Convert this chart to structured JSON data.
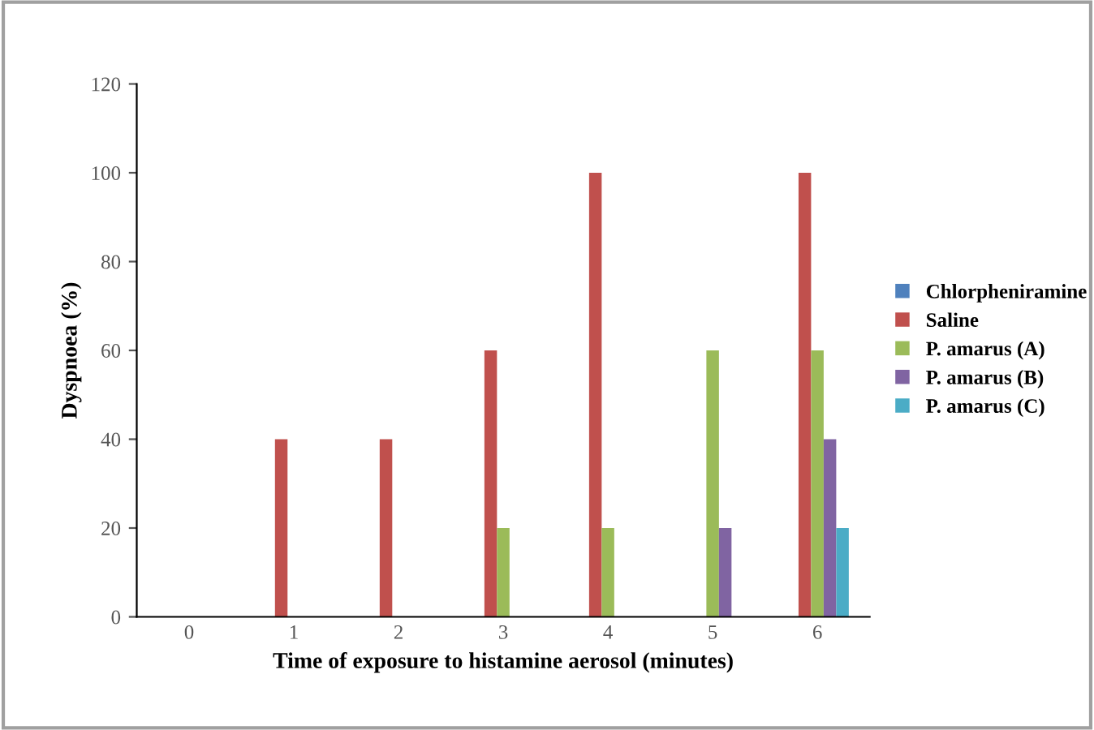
{
  "chart_data": {
    "type": "bar",
    "xlabel": "Time of exposure to histamine aerosol (minutes)",
    "ylabel": "Dyspnoea (%)",
    "categories": [
      "0",
      "1",
      "2",
      "3",
      "4",
      "5",
      "6"
    ],
    "series": [
      {
        "name": "Chlorpheniramine",
        "color": "#4f81bd",
        "values": [
          0,
          0,
          0,
          0,
          0,
          0,
          0
        ]
      },
      {
        "name": "Saline",
        "color": "#c0504d",
        "values": [
          0,
          40,
          40,
          60,
          100,
          0,
          100
        ]
      },
      {
        "name": "P. amarus (A)",
        "color": "#9bbb59",
        "values": [
          0,
          0,
          0,
          20,
          20,
          60,
          60
        ]
      },
      {
        "name": "P. amarus (B)",
        "color": "#8064a2",
        "values": [
          0,
          0,
          0,
          0,
          0,
          20,
          40
        ]
      },
      {
        "name": "P. amarus (C)",
        "color": "#4bacc6",
        "values": [
          0,
          0,
          0,
          0,
          0,
          0,
          20
        ]
      }
    ],
    "ylim": [
      0,
      120
    ],
    "yticks": [
      0,
      20,
      40,
      60,
      80,
      100,
      120
    ],
    "grid": false,
    "legend": "right"
  }
}
